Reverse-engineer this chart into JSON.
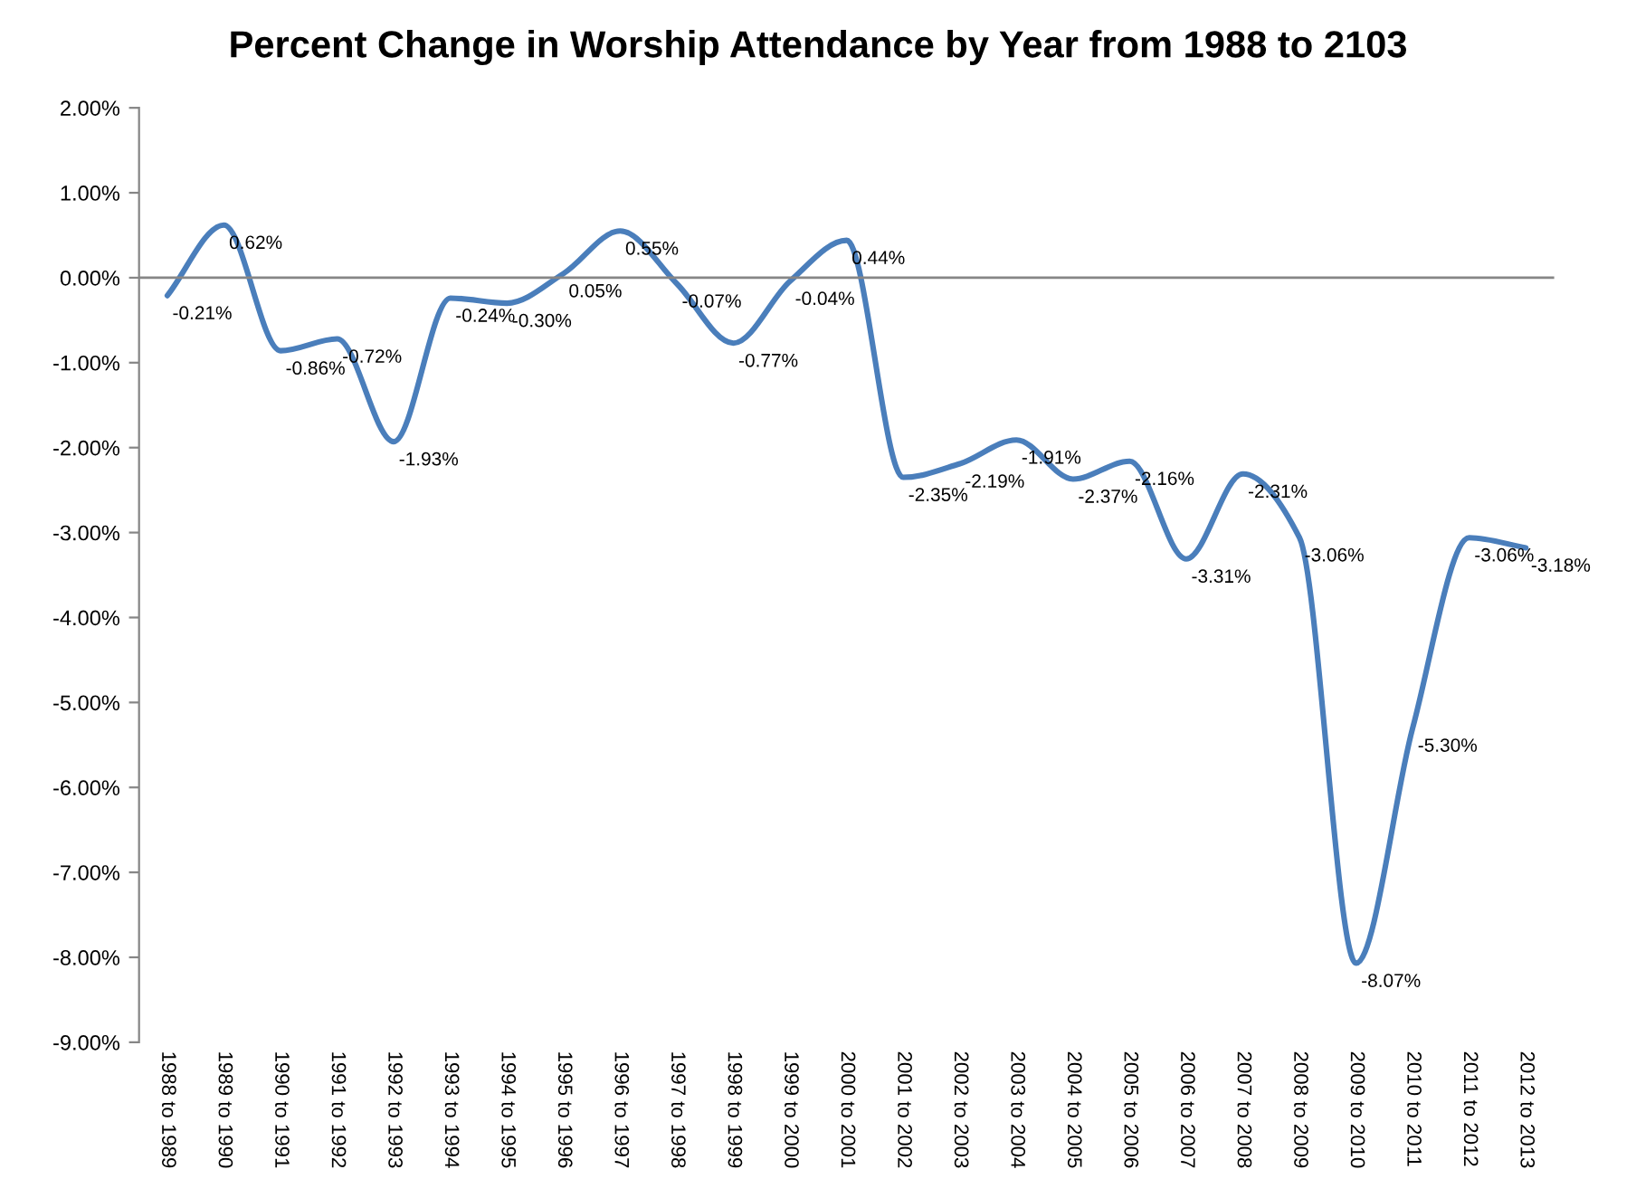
{
  "chart_data": {
    "type": "line",
    "title": "Percent Change in Worship Attendance by Year from 1988 to 2103",
    "categories": [
      "1988 to 1989",
      "1989 to 1990",
      "1990 to 1991",
      "1991 to 1992",
      "1992 to 1993",
      "1993 to 1994",
      "1994 to 1995",
      "1995 to 1996",
      "1996 to 1997",
      "1997 to 1998",
      "1998 to 1999",
      "1999 to 2000",
      "2000 to 2001",
      "2001 to 2002",
      "2002 to 2003",
      "2003 to 2004",
      "2004 to 2005",
      "2005 to 2006",
      "2006 to 2007",
      "2007 to 2008",
      "2008 to 2009",
      "2009 to 2010",
      "2010 to 2011",
      "2011 to 2012",
      "2012 to 2013"
    ],
    "series": [
      {
        "color": "#4a7ebb",
        "values": [
          -0.21,
          0.62,
          -0.86,
          -0.72,
          -1.93,
          -0.24,
          -0.3,
          0.05,
          0.55,
          -0.07,
          -0.77,
          -0.04,
          0.44,
          -2.35,
          -2.19,
          -1.91,
          -2.37,
          -2.16,
          -3.31,
          -2.31,
          -3.06,
          -8.07,
          -5.3,
          -3.06,
          -3.18
        ],
        "value_labels": [
          "-0.21%",
          "0.62%",
          "-0.86%",
          "-0.72%",
          "-1.93%",
          "-0.24%",
          "-0.30%",
          "0.05%",
          "0.55%",
          "-0.07%",
          "-0.77%",
          "-0.04%",
          "0.44%",
          "-2.35%",
          "-2.19%",
          "-1.91%",
          "-2.37%",
          "-2.16%",
          "-3.31%",
          "-2.31%",
          "-3.06%",
          "-8.07%",
          "-5.30%",
          "-3.06%",
          "-3.18%"
        ]
      }
    ],
    "ylim": [
      -9,
      2
    ],
    "yticks": [
      {
        "value": 2,
        "label": "2.00%"
      },
      {
        "value": 1,
        "label": "1.00%"
      },
      {
        "value": 0,
        "label": "0.00%"
      },
      {
        "value": -1,
        "label": "-1.00%"
      },
      {
        "value": -2,
        "label": "-2.00%"
      },
      {
        "value": -3,
        "label": "-3.00%"
      },
      {
        "value": -4,
        "label": "-4.00%"
      },
      {
        "value": -5,
        "label": "-5.00%"
      },
      {
        "value": -6,
        "label": "-6.00%"
      },
      {
        "value": -7,
        "label": "-7.00%"
      },
      {
        "value": -8,
        "label": "-8.00%"
      },
      {
        "value": -9,
        "label": "-9.00%"
      }
    ],
    "ref_lines": [
      {
        "axis": "y",
        "value": 0,
        "color": "#868686"
      }
    ],
    "grid": false,
    "legend": false,
    "marker": "none",
    "line_style": "solid"
  }
}
